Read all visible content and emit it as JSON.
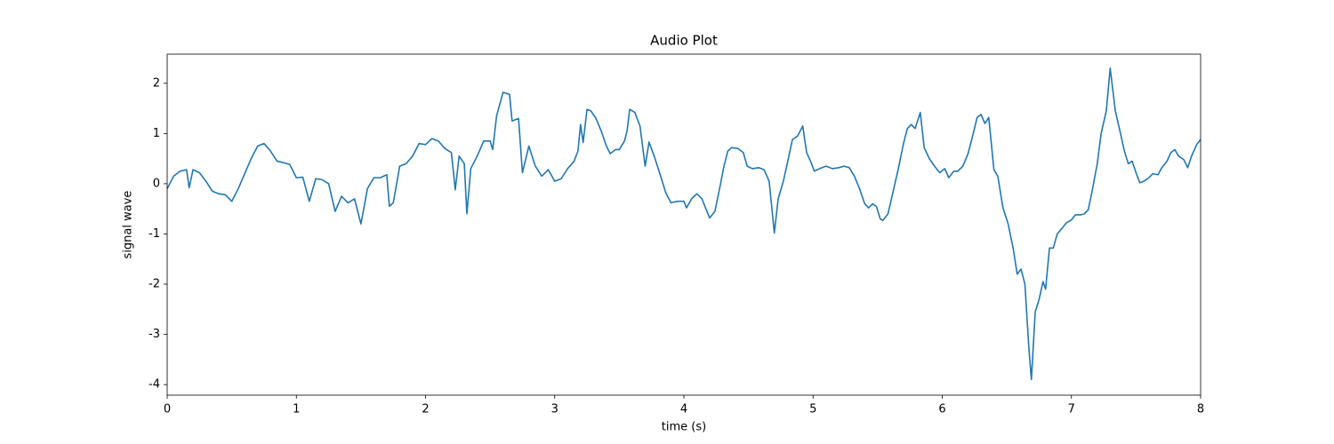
{
  "chart_data": {
    "type": "line",
    "title": "Audio Plot",
    "x_label": "time (s)",
    "y_label": "signal wave",
    "color": "#1f77b4",
    "x": [
      0,
      0.05,
      0.1,
      0.15,
      0.17,
      0.2,
      0.25,
      0.3,
      0.35,
      0.4,
      0.45,
      0.5,
      0.55,
      0.6,
      0.65,
      0.7,
      0.75,
      0.8,
      0.85,
      0.9,
      0.95,
      1.0,
      1.05,
      1.1,
      1.15,
      1.2,
      1.25,
      1.3,
      1.35,
      1.4,
      1.45,
      1.5,
      1.55,
      1.6,
      1.65,
      1.7,
      1.72,
      1.75,
      1.8,
      1.85,
      1.9,
      1.95,
      2.0,
      2.05,
      2.1,
      2.15,
      2.2,
      2.23,
      2.26,
      2.3,
      2.32,
      2.35,
      2.4,
      2.45,
      2.5,
      2.52,
      2.55,
      2.6,
      2.65,
      2.67,
      2.72,
      2.75,
      2.8,
      2.85,
      2.9,
      2.95,
      3.0,
      3.05,
      3.1,
      3.15,
      3.18,
      3.2,
      3.22,
      3.25,
      3.28,
      3.32,
      3.36,
      3.4,
      3.43,
      3.47,
      3.5,
      3.54,
      3.56,
      3.58,
      3.62,
      3.66,
      3.7,
      3.73,
      3.77,
      3.82,
      3.86,
      3.9,
      3.95,
      4.0,
      4.02,
      4.06,
      4.1,
      4.14,
      4.17,
      4.2,
      4.24,
      4.28,
      4.31,
      4.34,
      4.37,
      4.42,
      4.46,
      4.49,
      4.53,
      4.58,
      4.62,
      4.66,
      4.7,
      4.73,
      4.77,
      4.8,
      4.84,
      4.88,
      4.92,
      4.95,
      4.98,
      5.01,
      5.05,
      5.1,
      5.15,
      5.2,
      5.24,
      5.28,
      5.32,
      5.36,
      5.4,
      5.43,
      5.46,
      5.49,
      5.52,
      5.54,
      5.58,
      5.62,
      5.66,
      5.7,
      5.73,
      5.76,
      5.79,
      5.83,
      5.86,
      5.9,
      5.94,
      5.98,
      6.02,
      6.05,
      6.09,
      6.12,
      6.16,
      6.2,
      6.24,
      6.27,
      6.3,
      6.33,
      6.36,
      6.4,
      6.43,
      6.47,
      6.51,
      6.55,
      6.58,
      6.61,
      6.64,
      6.67,
      6.69,
      6.72,
      6.75,
      6.78,
      6.8,
      6.83,
      6.86,
      6.89,
      6.93,
      6.96,
      7.0,
      7.03,
      7.07,
      7.1,
      7.13,
      7.16,
      7.2,
      7.23,
      7.27,
      7.3,
      7.34,
      7.38,
      7.41,
      7.44,
      7.47,
      7.5,
      7.53,
      7.56,
      7.6,
      7.63,
      7.67,
      7.7,
      7.74,
      7.77,
      7.8,
      7.83,
      7.87,
      7.9,
      7.93,
      7.97,
      8.0
    ],
    "values": [
      -0.1,
      0.15,
      0.25,
      0.28,
      -0.08,
      0.28,
      0.22,
      0.05,
      -0.15,
      -0.2,
      -0.22,
      -0.35,
      -0.1,
      0.2,
      0.5,
      0.75,
      0.8,
      0.65,
      0.45,
      0.42,
      0.38,
      0.12,
      0.13,
      -0.35,
      0.1,
      0.08,
      0.0,
      -0.55,
      -0.25,
      -0.38,
      -0.3,
      -0.8,
      -0.1,
      0.12,
      0.12,
      0.18,
      -0.45,
      -0.38,
      0.35,
      0.4,
      0.55,
      0.8,
      0.78,
      0.9,
      0.85,
      0.7,
      0.62,
      -0.12,
      0.55,
      0.4,
      -0.6,
      0.3,
      0.55,
      0.85,
      0.85,
      0.68,
      1.35,
      1.82,
      1.78,
      1.25,
      1.3,
      0.22,
      0.75,
      0.35,
      0.15,
      0.28,
      0.05,
      0.1,
      0.3,
      0.45,
      0.65,
      1.18,
      0.82,
      1.48,
      1.45,
      1.3,
      1.05,
      0.75,
      0.6,
      0.68,
      0.68,
      0.85,
      1.05,
      1.48,
      1.42,
      1.15,
      0.35,
      0.83,
      0.55,
      0.15,
      -0.18,
      -0.38,
      -0.35,
      -0.35,
      -0.48,
      -0.3,
      -0.2,
      -0.3,
      -0.5,
      -0.68,
      -0.55,
      -0.05,
      0.35,
      0.65,
      0.72,
      0.7,
      0.62,
      0.35,
      0.3,
      0.32,
      0.28,
      0.05,
      -0.98,
      -0.3,
      0.05,
      0.4,
      0.88,
      0.95,
      1.15,
      0.62,
      0.45,
      0.25,
      0.3,
      0.35,
      0.3,
      0.32,
      0.35,
      0.32,
      0.15,
      -0.1,
      -0.4,
      -0.48,
      -0.4,
      -0.45,
      -0.7,
      -0.73,
      -0.6,
      -0.15,
      0.3,
      0.8,
      1.1,
      1.18,
      1.1,
      1.42,
      0.72,
      0.5,
      0.35,
      0.22,
      0.3,
      0.12,
      0.25,
      0.25,
      0.35,
      0.6,
      1.0,
      1.32,
      1.38,
      1.2,
      1.32,
      0.28,
      0.15,
      -0.48,
      -0.8,
      -1.3,
      -1.8,
      -1.7,
      -2.0,
      -3.25,
      -3.9,
      -2.55,
      -2.3,
      -1.95,
      -2.1,
      -1.28,
      -1.28,
      -1.0,
      -0.88,
      -0.78,
      -0.72,
      -0.62,
      -0.62,
      -0.6,
      -0.52,
      -0.15,
      0.4,
      1.0,
      1.45,
      2.3,
      1.45,
      1.0,
      0.65,
      0.4,
      0.45,
      0.22,
      0.02,
      0.05,
      0.12,
      0.2,
      0.18,
      0.32,
      0.45,
      0.62,
      0.68,
      0.55,
      0.48,
      0.32,
      0.55,
      0.78,
      0.88
    ],
    "xlim": [
      0,
      8
    ],
    "ylim": [
      -4.21,
      2.58
    ],
    "xticks": [
      0,
      1,
      2,
      3,
      4,
      5,
      6,
      7,
      8
    ],
    "yticks": [
      -4,
      -3,
      -2,
      -1,
      0,
      1,
      2
    ],
    "grid": false
  }
}
